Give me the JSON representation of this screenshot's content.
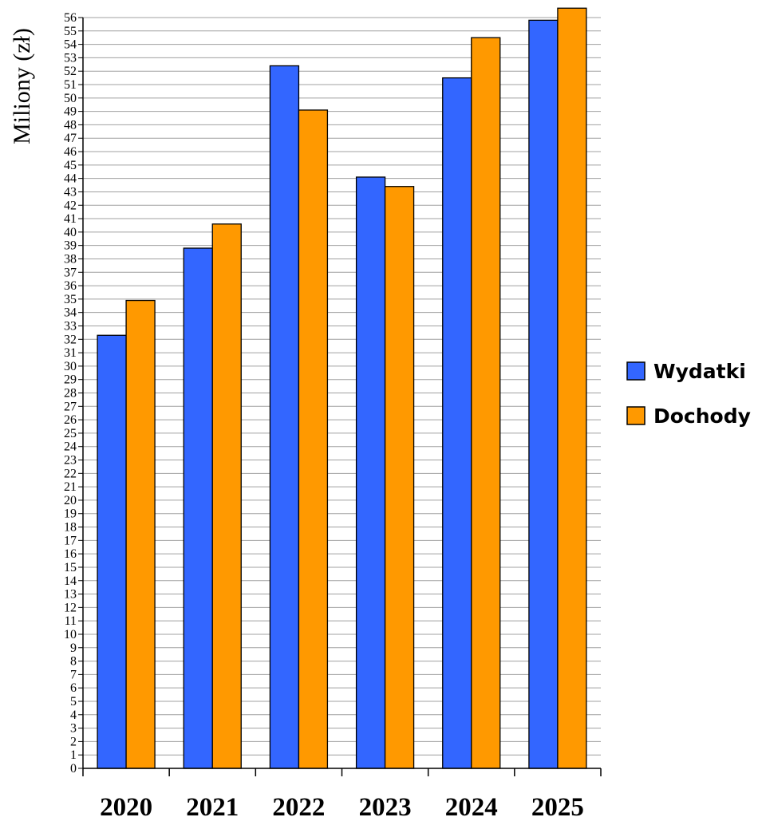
{
  "chart_data": {
    "type": "bar",
    "title": "",
    "xlabel": "",
    "ylabel": "Miliony (zł)",
    "ylim": [
      0,
      56
    ],
    "ytick_step": 1,
    "grid": true,
    "legend_position": "right",
    "categories": [
      "2020",
      "2021",
      "2022",
      "2023",
      "2024",
      "2025"
    ],
    "series": [
      {
        "name": "Wydatki",
        "color": "#3366FF",
        "values": [
          32.3,
          38.8,
          52.4,
          44.1,
          51.5,
          55.8
        ]
      },
      {
        "name": "Dochody",
        "color": "#FF9900",
        "values": [
          34.9,
          40.6,
          49.1,
          43.4,
          54.5,
          57.5
        ]
      }
    ]
  }
}
